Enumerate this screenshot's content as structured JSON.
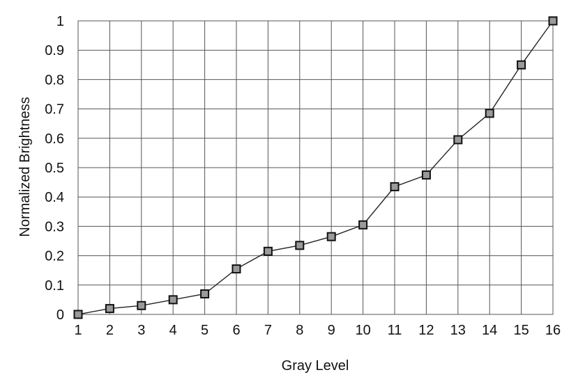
{
  "chart_data": {
    "type": "line",
    "xlabel": "Gray Level",
    "ylabel": "Normalized Brightness",
    "x": [
      1,
      2,
      3,
      4,
      5,
      6,
      7,
      8,
      9,
      10,
      11,
      12,
      13,
      14,
      15,
      16
    ],
    "series": [
      {
        "values": [
          0.0,
          0.02,
          0.03,
          0.05,
          0.07,
          0.155,
          0.215,
          0.235,
          0.265,
          0.305,
          0.435,
          0.475,
          0.595,
          0.685,
          0.85,
          1.0
        ],
        "marker": "square",
        "color": "#222222"
      }
    ],
    "xlim": [
      1,
      16
    ],
    "ylim": [
      0,
      1
    ],
    "x_ticks": [
      "1",
      "2",
      "3",
      "4",
      "5",
      "6",
      "7",
      "8",
      "9",
      "10",
      "11",
      "12",
      "13",
      "14",
      "15",
      "16"
    ],
    "y_ticks": [
      "0",
      "0.1",
      "0.2",
      "0.3",
      "0.4",
      "0.5",
      "0.6",
      "0.7",
      "0.8",
      "0.9",
      "1"
    ],
    "grid": true,
    "legend": "none",
    "colors": {
      "grid": "#555555",
      "line": "#222222",
      "marker_fill": "#9a9a9a",
      "marker_edge": "#111111",
      "text": "#111111"
    }
  }
}
